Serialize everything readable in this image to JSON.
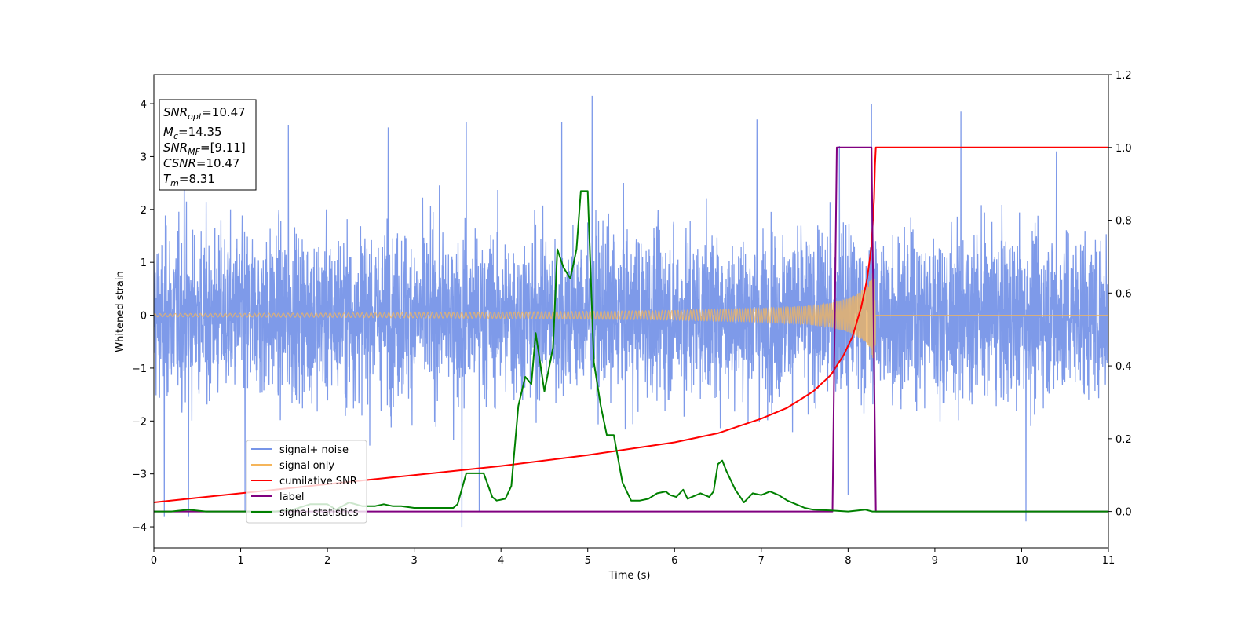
{
  "chart_data": {
    "type": "line",
    "xlabel": "Time (s)",
    "ylabel": "Whitened strain",
    "xlim": [
      0,
      11
    ],
    "ylim": [
      -4.4,
      4.55
    ],
    "y2lim": [
      -0.1,
      1.2
    ],
    "xticks": [
      "0",
      "1",
      "2",
      "3",
      "4",
      "5",
      "6",
      "7",
      "8",
      "9",
      "10",
      "11"
    ],
    "yticks": [
      "−4",
      "−3",
      "−2",
      "−1",
      "0",
      "1",
      "2",
      "3",
      "4"
    ],
    "y2ticks": [
      "0.0",
      "0.2",
      "0.4",
      "0.6",
      "0.8",
      "1.0",
      "1.2"
    ],
    "grid": false,
    "legend_position": "lower-left",
    "info_box": {
      "snr_opt": {
        "base": "SNR",
        "sub": "opt",
        "value": "=10.47"
      },
      "mc": {
        "base": "M",
        "sub": "c",
        "value": "=14.35"
      },
      "snr_mf": {
        "base": "SNR",
        "sub": "MF",
        "value": "=[9.11]"
      },
      "csnr": {
        "base": "CSNR",
        "value": "=10.47"
      },
      "tm": {
        "base": "T",
        "sub": "m",
        "value": "=8.31"
      }
    },
    "series": [
      {
        "name": "signal+ noise",
        "axis": "left",
        "color": "#7795e8",
        "description_points": {
          "typical_amplitude": 2.0,
          "peak_positive": [
            [
              0.35,
              3.85
            ],
            [
              1.55,
              3.6
            ],
            [
              2.7,
              3.55
            ],
            [
              3.6,
              3.65
            ],
            [
              4.7,
              3.65
            ],
            [
              5.05,
              4.15
            ],
            [
              6.95,
              3.7
            ],
            [
              7.9,
              3.2
            ],
            [
              8.27,
              4.0
            ],
            [
              9.3,
              3.85
            ],
            [
              10.4,
              3.1
            ]
          ],
          "peak_negative": [
            [
              0.12,
              -3.8
            ],
            [
              0.4,
              -3.8
            ],
            [
              1.05,
              -3.7
            ],
            [
              3.55,
              -4.0
            ],
            [
              3.75,
              -3.7
            ],
            [
              8.0,
              -3.4
            ],
            [
              10.05,
              -3.9
            ]
          ]
        }
      },
      {
        "name": "signal only",
        "axis": "left",
        "color": "#f5b55a",
        "envelope": [
          [
            0,
            0.03
          ],
          [
            2,
            0.04
          ],
          [
            4,
            0.06
          ],
          [
            6,
            0.09
          ],
          [
            7,
            0.13
          ],
          [
            7.5,
            0.17
          ],
          [
            7.8,
            0.23
          ],
          [
            8.0,
            0.32
          ],
          [
            8.1,
            0.4
          ],
          [
            8.2,
            0.52
          ],
          [
            8.26,
            0.68
          ],
          [
            8.3,
            0.9
          ],
          [
            8.31,
            1.0
          ],
          [
            8.32,
            0.02
          ],
          [
            11,
            0.02
          ]
        ]
      },
      {
        "name": "cumilative SNR",
        "axis": "right",
        "color": "#ff0000",
        "x": [
          0,
          1,
          2,
          3,
          4,
          5,
          6,
          6.5,
          7,
          7.3,
          7.6,
          7.8,
          7.95,
          8.05,
          8.15,
          8.22,
          8.27,
          8.3,
          8.31,
          8.32,
          11
        ],
        "values": [
          0.025,
          0.05,
          0.075,
          0.1,
          0.125,
          0.155,
          0.19,
          0.215,
          0.255,
          0.285,
          0.33,
          0.375,
          0.43,
          0.48,
          0.56,
          0.64,
          0.73,
          0.86,
          0.95,
          1.0,
          1.0
        ]
      },
      {
        "name": "label",
        "axis": "right",
        "color": "#800080",
        "x": [
          0,
          7.82,
          7.87,
          8.27,
          8.32,
          11
        ],
        "values": [
          0.0,
          0.0,
          1.0,
          1.0,
          0.0,
          0.0
        ]
      },
      {
        "name": "signal statistics",
        "axis": "right",
        "color": "#008000",
        "x": [
          0,
          0.2,
          0.4,
          0.6,
          0.8,
          1.0,
          1.2,
          1.4,
          1.6,
          1.8,
          2.0,
          2.1,
          2.25,
          2.4,
          2.55,
          2.65,
          2.75,
          2.85,
          3.0,
          3.15,
          3.3,
          3.45,
          3.5,
          3.6,
          3.7,
          3.8,
          3.9,
          3.95,
          4.05,
          4.12,
          4.2,
          4.28,
          4.35,
          4.4,
          4.5,
          4.6,
          4.65,
          4.72,
          4.8,
          4.87,
          4.92,
          5.0,
          5.07,
          5.15,
          5.22,
          5.3,
          5.4,
          5.5,
          5.6,
          5.7,
          5.8,
          5.9,
          5.95,
          6.02,
          6.1,
          6.15,
          6.2,
          6.3,
          6.4,
          6.45,
          6.5,
          6.55,
          6.6,
          6.7,
          6.8,
          6.9,
          7.0,
          7.1,
          7.2,
          7.3,
          7.4,
          7.5,
          7.6,
          7.8,
          8.0,
          8.2,
          8.28,
          8.35,
          11
        ],
        "values": [
          0.0,
          0.0,
          0.005,
          0.0,
          0.0,
          0.0,
          0.0,
          0.0,
          0.005,
          0.02,
          0.02,
          0.005,
          0.025,
          0.015,
          0.015,
          0.02,
          0.015,
          0.015,
          0.01,
          0.01,
          0.01,
          0.01,
          0.02,
          0.105,
          0.105,
          0.105,
          0.04,
          0.03,
          0.035,
          0.07,
          0.29,
          0.37,
          0.35,
          0.49,
          0.33,
          0.45,
          0.72,
          0.67,
          0.64,
          0.72,
          0.88,
          0.88,
          0.41,
          0.29,
          0.21,
          0.21,
          0.08,
          0.03,
          0.03,
          0.035,
          0.05,
          0.055,
          0.045,
          0.04,
          0.06,
          0.035,
          0.04,
          0.05,
          0.04,
          0.055,
          0.13,
          0.14,
          0.11,
          0.06,
          0.025,
          0.05,
          0.045,
          0.055,
          0.045,
          0.03,
          0.02,
          0.01,
          0.005,
          0.003,
          0.0,
          0.005,
          0.0,
          0.0,
          0.0
        ]
      }
    ]
  }
}
